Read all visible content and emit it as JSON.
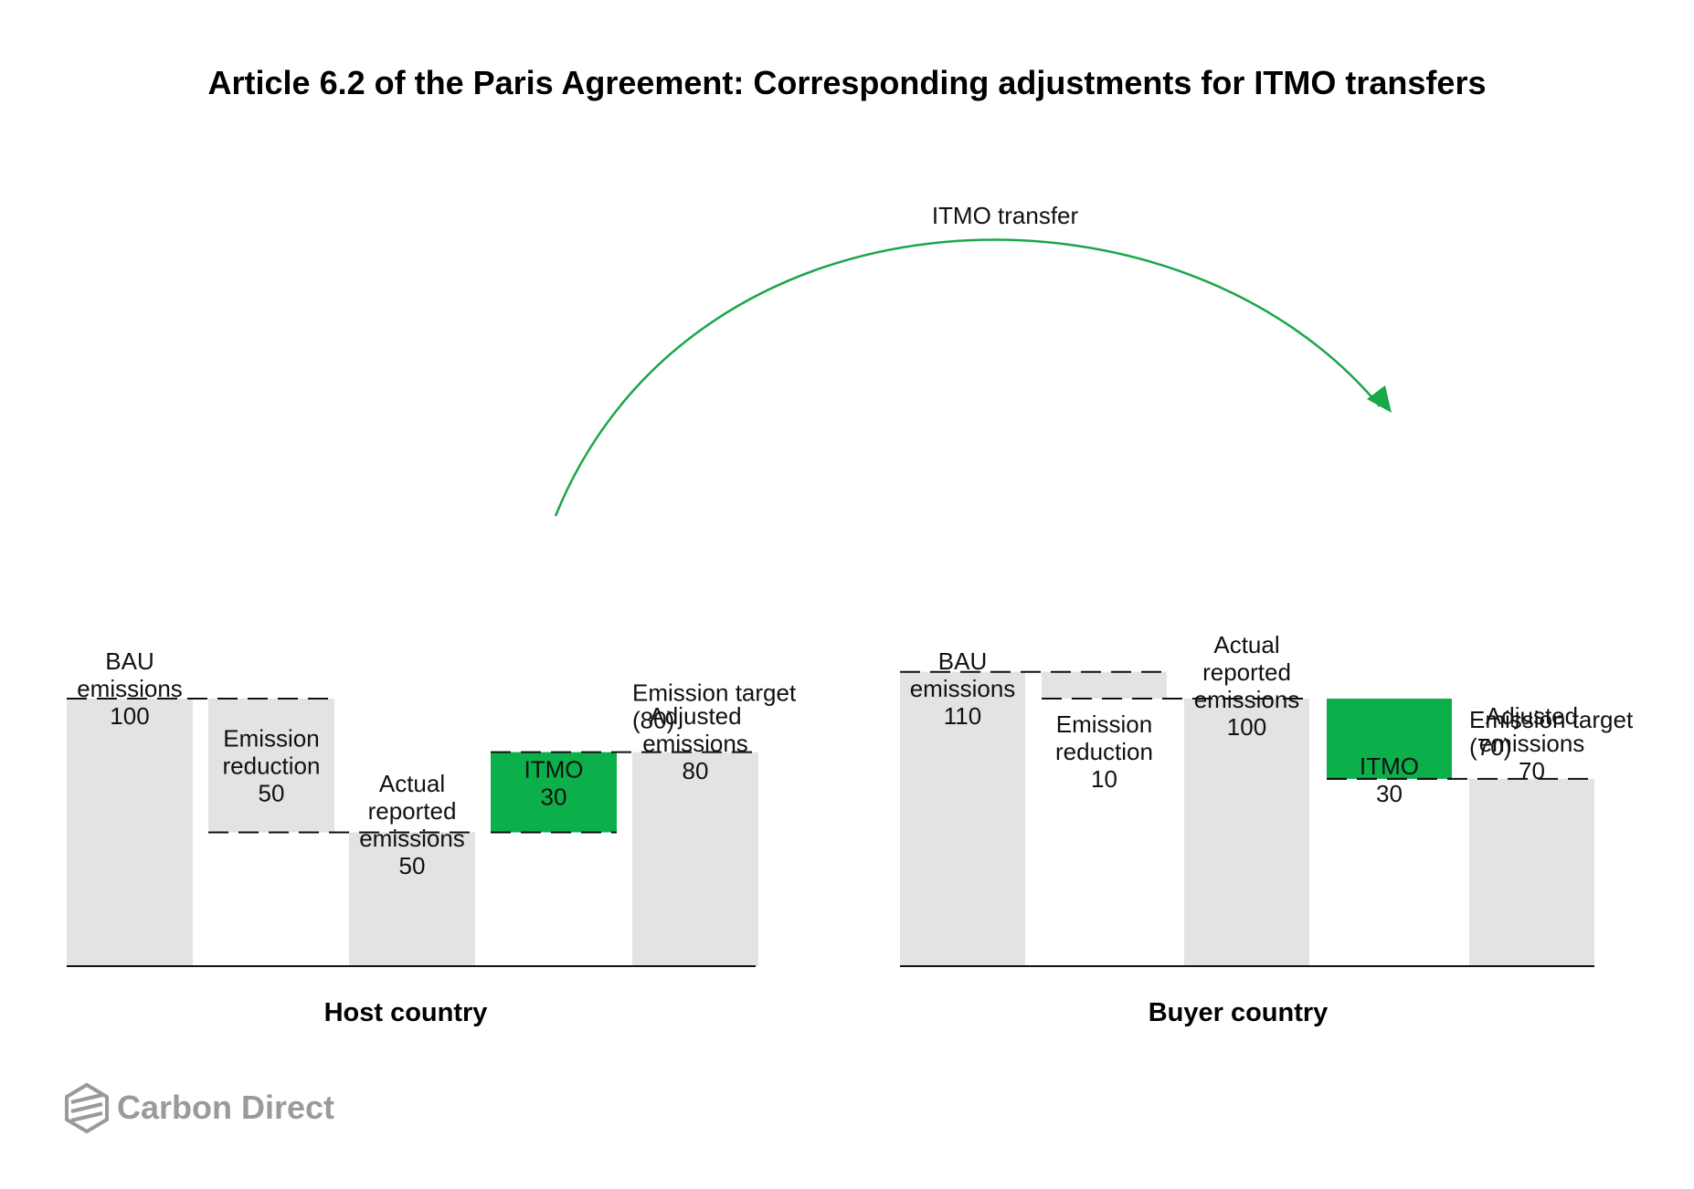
{
  "title": "Article 6.2 of the Paris Agreement: Corresponding adjustments for ITMO transfers",
  "transfer_label": "ITMO transfer",
  "colors": {
    "bar": "#e3e3e3",
    "itmo": "#0cb04a",
    "arrow": "#1aa64a",
    "axis": "#111111",
    "logo": "#9a9a9a"
  },
  "logo": {
    "text": "Carbon Direct",
    "icon": "carbon-direct-logo-icon"
  },
  "chart_data": [
    {
      "type": "waterfall",
      "group_label": "Host country",
      "steps": [
        {
          "key": "bau",
          "kind": "total",
          "from": 0,
          "to": 100,
          "lines": [
            "BAU",
            "emissions",
            "100"
          ]
        },
        {
          "key": "reduction",
          "kind": "decrease",
          "from": 50,
          "to": 100,
          "lines": [
            "Emission",
            "reduction",
            "50"
          ]
        },
        {
          "key": "actual",
          "kind": "total",
          "from": 0,
          "to": 50,
          "lines": [
            "Actual",
            "reported",
            "emissions",
            "50"
          ]
        },
        {
          "key": "itmo",
          "kind": "itmo",
          "from": 50,
          "to": 80,
          "lines": [
            "ITMO",
            "30"
          ]
        },
        {
          "key": "adjusted",
          "kind": "total",
          "from": 0,
          "to": 80,
          "lines": [
            "Adjusted",
            "emissions",
            "80"
          ]
        }
      ],
      "target": {
        "value": 80,
        "lines": [
          "Emission target",
          "(80)"
        ]
      }
    },
    {
      "type": "waterfall",
      "group_label": "Buyer country",
      "steps": [
        {
          "key": "bau",
          "kind": "total",
          "from": 0,
          "to": 110,
          "lines": [
            "BAU",
            "emissions",
            "110"
          ]
        },
        {
          "key": "reduction",
          "kind": "decrease",
          "from": 100,
          "to": 110,
          "lines": [
            "Emission",
            "reduction",
            "10"
          ]
        },
        {
          "key": "actual",
          "kind": "total",
          "from": 0,
          "to": 100,
          "lines": [
            "Actual",
            "reported",
            "emissions",
            "100"
          ]
        },
        {
          "key": "itmo",
          "kind": "itmo",
          "from": 70,
          "to": 100,
          "lines": [
            "ITMO",
            "30"
          ]
        },
        {
          "key": "adjusted",
          "kind": "total",
          "from": 0,
          "to": 70,
          "lines": [
            "Adjusted",
            "emissions",
            "70"
          ]
        }
      ],
      "target": {
        "value": 70,
        "lines": [
          "Emission target",
          "(70)"
        ]
      }
    }
  ]
}
